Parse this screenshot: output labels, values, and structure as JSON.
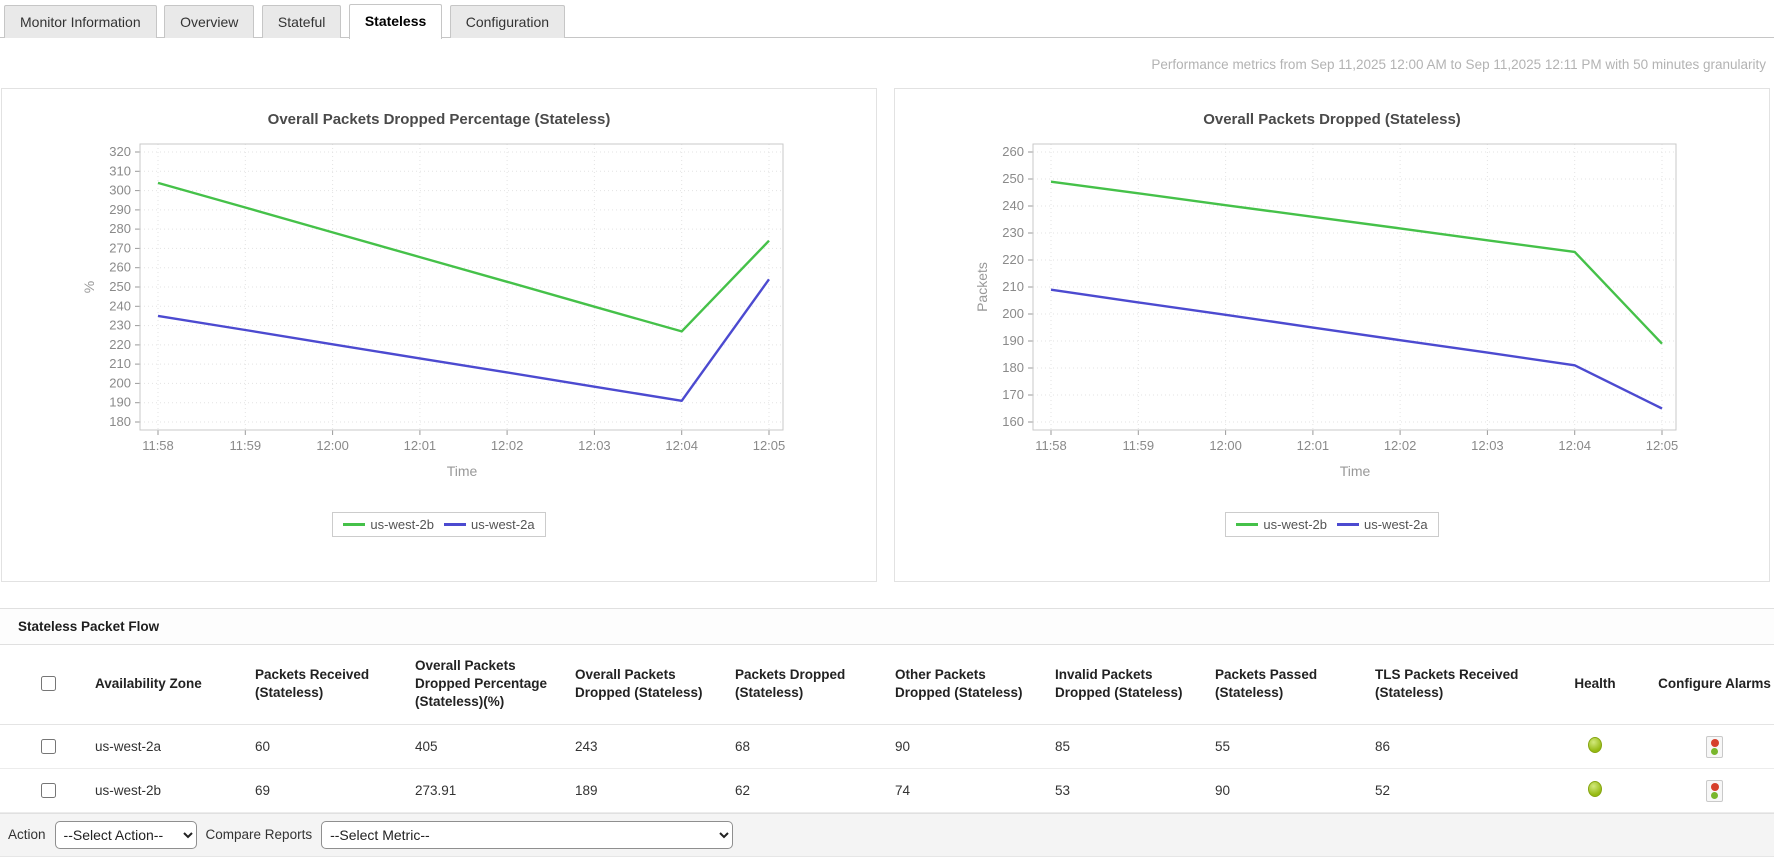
{
  "tabs": [
    {
      "label": "Monitor Information",
      "active": false
    },
    {
      "label": "Overview",
      "active": false
    },
    {
      "label": "Stateful",
      "active": false
    },
    {
      "label": "Stateless",
      "active": true
    },
    {
      "label": "Configuration",
      "active": false
    }
  ],
  "subtitle": "Performance metrics from Sep 11,2025 12:00 AM to Sep 11,2025 12:11 PM with 50 minutes granularity",
  "chart_data": [
    {
      "type": "line",
      "title": "Overall Packets Dropped Percentage (Stateless)",
      "xlabel": "Time",
      "ylabel": "%",
      "x": [
        "11:58",
        "11:59",
        "12:00",
        "12:01",
        "12:02",
        "12:03",
        "12:04",
        "12:05"
      ],
      "ylim": [
        180,
        320
      ],
      "ytick_step": 10,
      "grid": true,
      "legend_position": "bottom",
      "series": [
        {
          "name": "us-west-2b",
          "color": "#45c149",
          "values": [
            304,
            291.2,
            278.3,
            265.5,
            252.7,
            239.8,
            227,
            274
          ]
        },
        {
          "name": "us-west-2a",
          "color": "#4c4ad0",
          "values": [
            235,
            227.7,
            220.3,
            213,
            205.7,
            198.3,
            191,
            254
          ]
        }
      ]
    },
    {
      "type": "line",
      "title": "Overall Packets Dropped (Stateless)",
      "xlabel": "Time",
      "ylabel": "Packets",
      "x": [
        "11:58",
        "11:59",
        "12:00",
        "12:01",
        "12:02",
        "12:03",
        "12:04",
        "12:05"
      ],
      "ylim": [
        160,
        260
      ],
      "ytick_step": 10,
      "grid": true,
      "legend_position": "bottom",
      "series": [
        {
          "name": "us-west-2b",
          "color": "#45c149",
          "values": [
            249,
            244.7,
            240.3,
            236,
            231.7,
            227.3,
            223,
            189
          ]
        },
        {
          "name": "us-west-2a",
          "color": "#4c4ad0",
          "values": [
            209,
            204.3,
            199.7,
            195,
            190.3,
            185.7,
            181,
            165
          ]
        }
      ]
    }
  ],
  "table": {
    "section_title": "Stateless Packet Flow",
    "columns": [
      "Availability Zone",
      "Packets Received (Stateless)",
      "Overall Packets Dropped Percentage (Stateless)(%)",
      "Overall Packets Dropped (Stateless)",
      "Packets Dropped (Stateless)",
      "Other Packets Dropped (Stateless)",
      "Invalid Packets Dropped (Stateless)",
      "Packets Passed (Stateless)",
      "TLS Packets Received (Stateless)",
      "Health",
      "Configure Alarms"
    ],
    "rows": [
      {
        "zone": "us-west-2a",
        "values": [
          "60",
          "405",
          "243",
          "68",
          "90",
          "85",
          "55",
          "86"
        ],
        "health": "green"
      },
      {
        "zone": "us-west-2b",
        "values": [
          "69",
          "273.91",
          "189",
          "62",
          "74",
          "53",
          "90",
          "52"
        ],
        "health": "green"
      }
    ]
  },
  "footer": {
    "action_label": "Action",
    "action_selected": "--Select Action--",
    "compare_label": "Compare Reports",
    "compare_selected": "--Select Metric--"
  },
  "colors": {
    "series_us_west_2b": "#45c149",
    "series_us_west_2a": "#4c4ad0",
    "health_ok": "#96ba13",
    "alarm_red": "#d6402c",
    "alarm_green": "#79b62c",
    "subtitle_gray": "#b3b3b3"
  }
}
